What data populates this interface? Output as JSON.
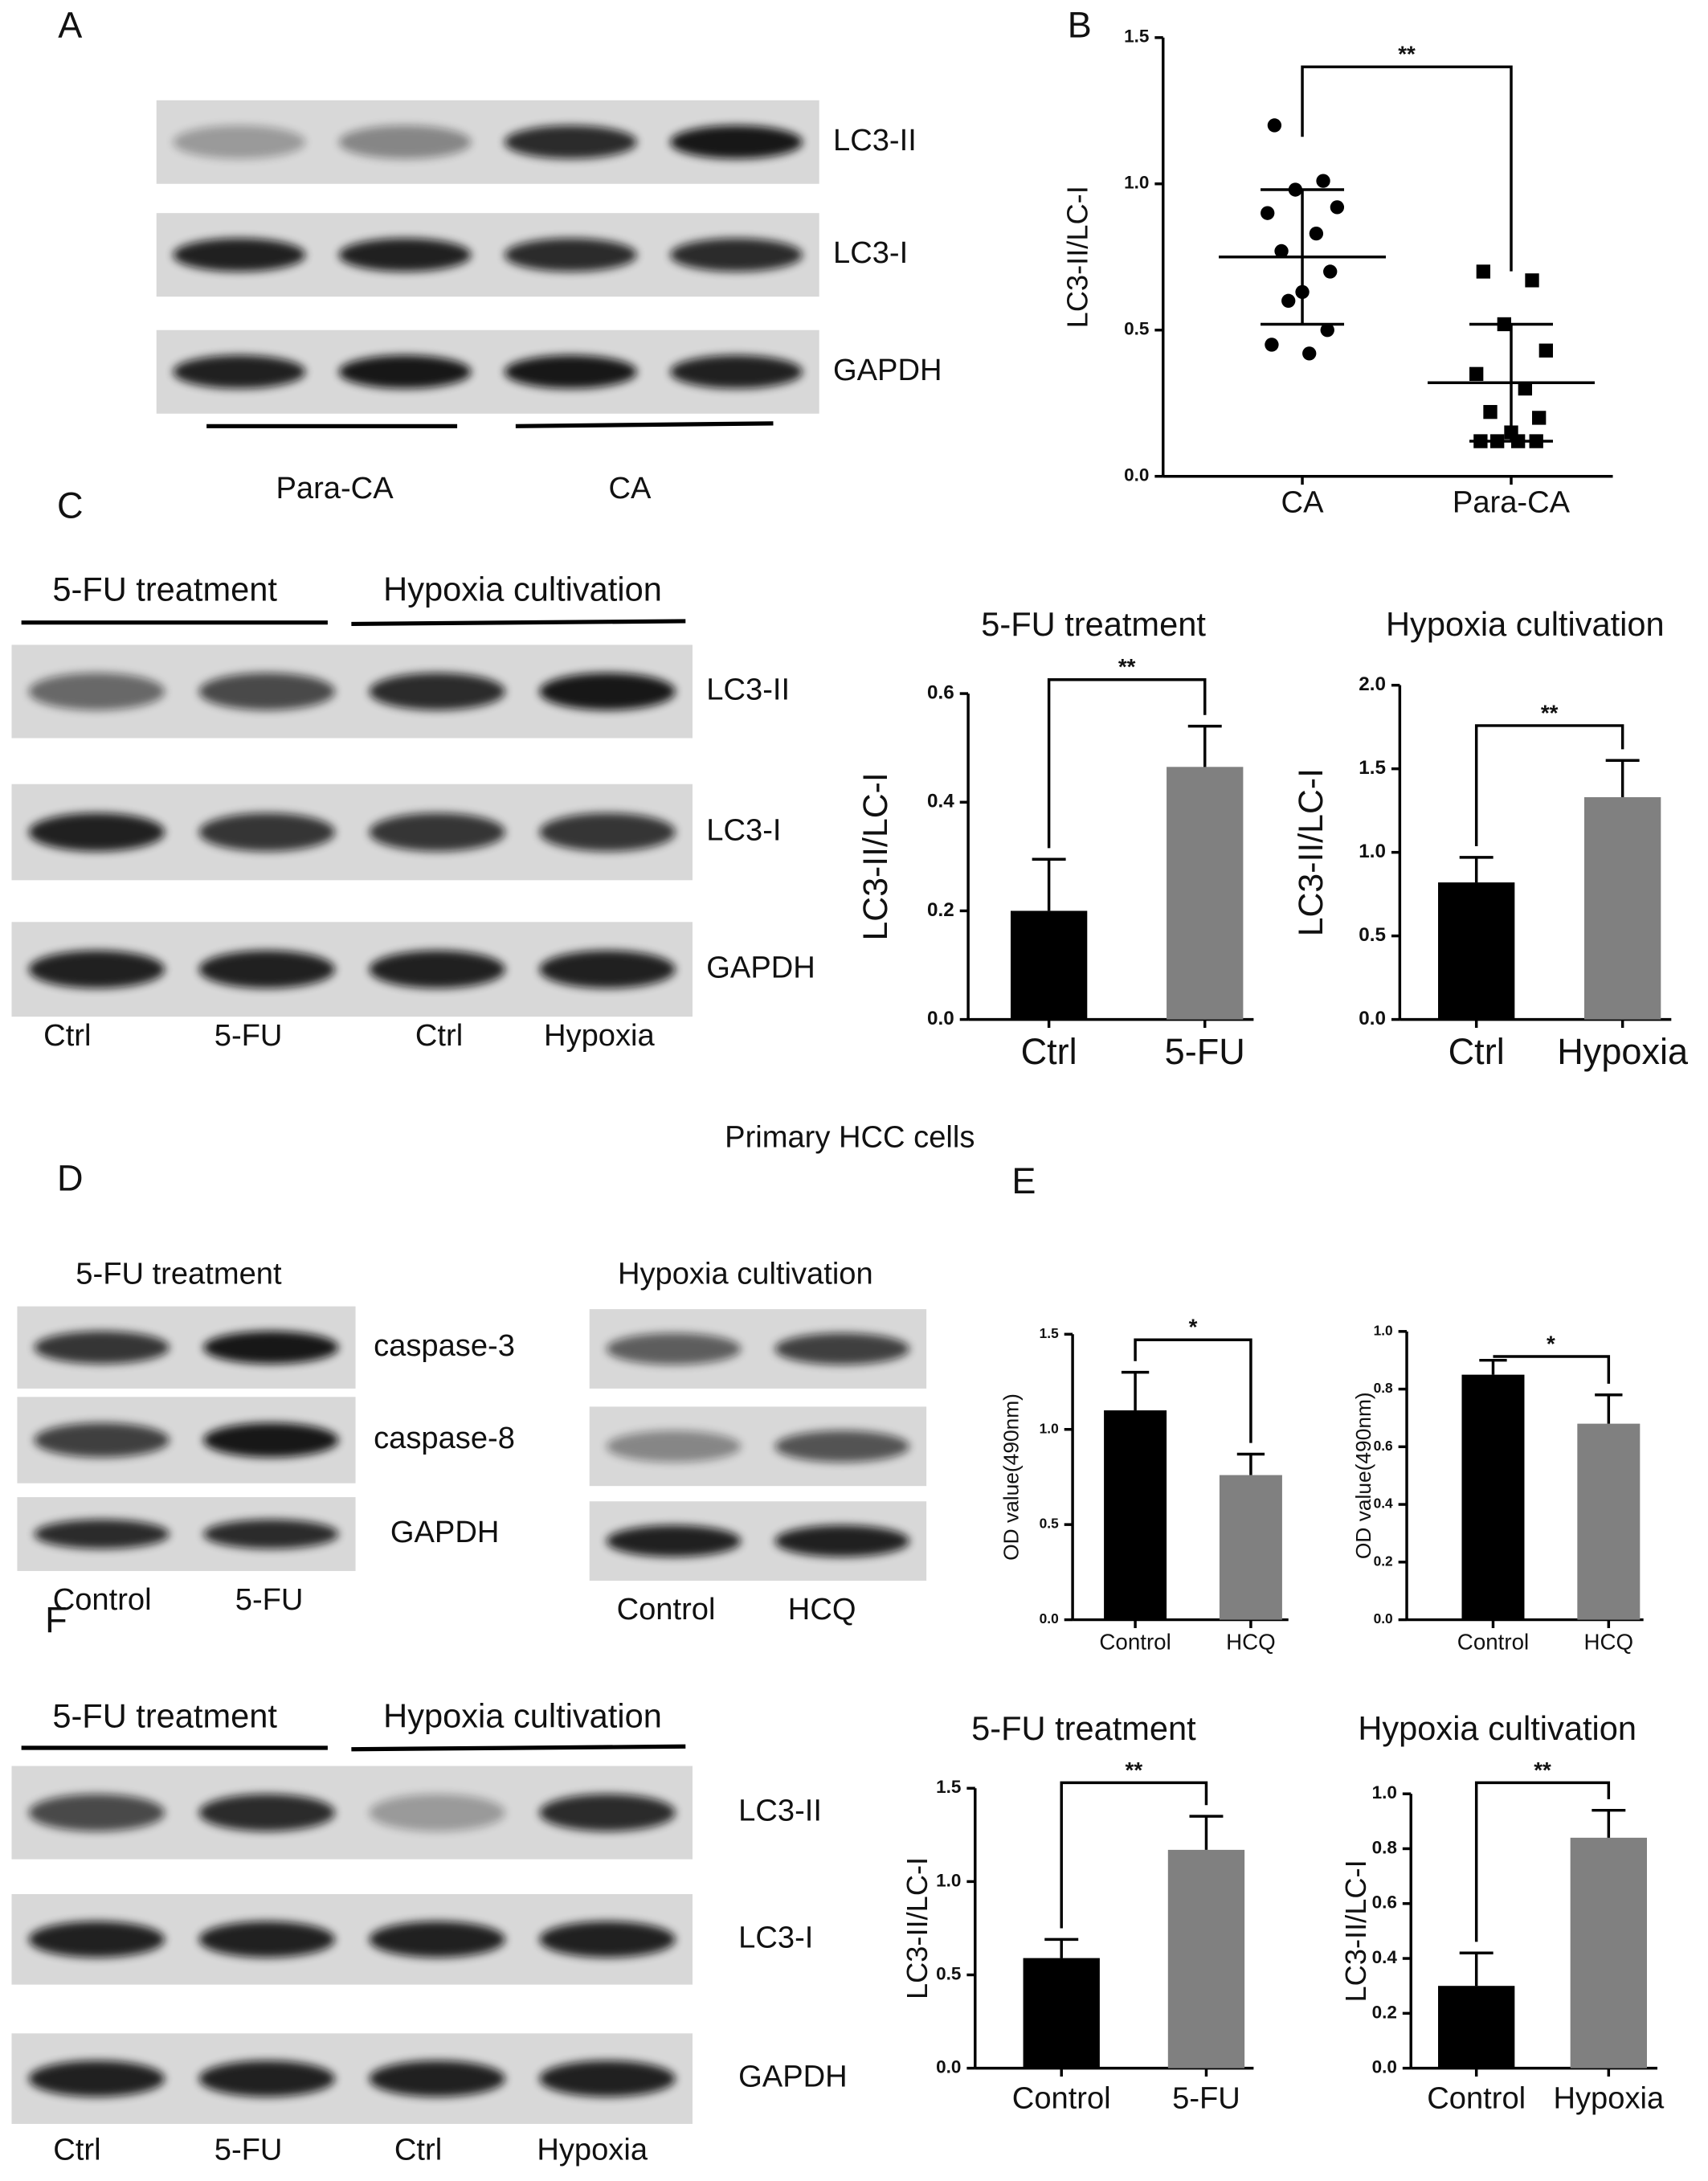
{
  "panels": [
    "A",
    "B",
    "C",
    "D",
    "E",
    "F"
  ],
  "A": {
    "blots": [
      "LC3-II",
      "LC3-I",
      "GAPDH"
    ],
    "groups": [
      "Para-CA",
      "CA"
    ]
  },
  "C": {
    "headers": [
      "5-FU treatment",
      "Hypoxia cultivation"
    ],
    "blots": [
      "LC3-II",
      "LC3-I",
      "GAPDH"
    ],
    "lanes": [
      "Ctrl",
      "5-FU",
      "Ctrl",
      "Hypoxia"
    ]
  },
  "D": {
    "heading": "Primary HCC cells",
    "left": {
      "header": "5-FU treatment",
      "blots": [
        "caspase-3",
        "caspase-8",
        "GAPDH"
      ],
      "lanes": [
        "Control",
        "5-FU"
      ]
    },
    "right": {
      "header": "Hypoxia cultivation",
      "lanes": [
        "Control",
        "HCQ"
      ]
    }
  },
  "F": {
    "headers": [
      "5-FU treatment",
      "Hypoxia cultivation"
    ],
    "blots": [
      "LC3-II",
      "LC3-I",
      "GAPDH"
    ],
    "lanes": [
      "Ctrl",
      "5-FU",
      "Ctrl",
      "Hypoxia"
    ]
  },
  "chart_data": [
    {
      "type": "strip",
      "ylabel": "LC3-II/LC-I",
      "categories": [
        "CA",
        "Para-CA"
      ],
      "groups": [
        {
          "values": [
            1.2,
            1.01,
            0.98,
            0.92,
            0.9,
            0.83,
            0.77,
            0.7,
            0.63,
            0.6,
            0.5,
            0.45,
            0.42
          ],
          "mean": 0.75,
          "sd": 0.23
        },
        {
          "values": [
            0.7,
            0.67,
            0.52,
            0.43,
            0.35,
            0.3,
            0.22,
            0.2,
            0.15,
            0.12,
            0.12,
            0.12,
            0.12
          ],
          "mean": 0.32,
          "sd": 0.2
        }
      ],
      "markers": [
        "circle",
        "square"
      ],
      "color": "#000000",
      "ylim": [
        0,
        1.5
      ],
      "yticks": [
        {
          "value": 0,
          "label": "0.0"
        },
        0.5,
        {
          "value": 1,
          "label": "1.0"
        },
        1.5
      ],
      "significance": "**"
    },
    {
      "type": "bar",
      "title": "5-FU treatment",
      "ylabel": "LC3-II/LC-I",
      "categories": [
        "Ctrl",
        "5-FU"
      ],
      "values": [
        0.2,
        0.465
      ],
      "errors": [
        0.095,
        0.075
      ],
      "colors": [
        "#000000",
        "#808080"
      ],
      "ylim": [
        0,
        0.6
      ],
      "yticks": [
        {
          "value": 0,
          "label": "0.0"
        },
        0.2,
        0.4,
        0.6
      ],
      "significance": "**"
    },
    {
      "type": "bar",
      "title": "Hypoxia cultivation",
      "ylabel": "LC3-II/LC-I",
      "categories": [
        "Ctrl",
        "Hypoxia"
      ],
      "values": [
        0.82,
        1.33
      ],
      "errors": [
        0.15,
        0.22
      ],
      "colors": [
        "#000000",
        "#808080"
      ],
      "ylim": [
        0,
        2
      ],
      "yticks": [
        {
          "value": 0,
          "label": "0.0"
        },
        0.5,
        {
          "value": 1,
          "label": "1.0"
        },
        1.5,
        {
          "value": 2,
          "label": "2.0"
        }
      ],
      "significance": "**"
    },
    {
      "type": "bar",
      "ylabel": "OD value(490nm)",
      "categories": [
        "Control",
        "HCQ"
      ],
      "values": [
        1.1,
        0.76
      ],
      "errors": [
        0.2,
        0.11
      ],
      "colors": [
        "#000000",
        "#808080"
      ],
      "ylim": [
        0,
        1.5
      ],
      "yticks": [
        {
          "value": 0,
          "label": "0.0"
        },
        0.5,
        {
          "value": 1,
          "label": "1.0"
        },
        1.5
      ],
      "significance": "*"
    },
    {
      "type": "bar",
      "ylabel": "OD value(490nm)",
      "categories": [
        "Control",
        "HCQ"
      ],
      "values": [
        0.85,
        0.68
      ],
      "errors": [
        0.05,
        0.1
      ],
      "colors": [
        "#000000",
        "#808080"
      ],
      "ylim": [
        0,
        1
      ],
      "yticks": [
        {
          "value": 0,
          "label": "0.0"
        },
        0.2,
        0.4,
        0.6,
        0.8,
        {
          "value": 1,
          "label": "1.0"
        }
      ],
      "significance": "*"
    },
    {
      "type": "bar",
      "title": "5-FU treatment",
      "ylabel": "LC3-II/LC-I",
      "categories": [
        "Control",
        "5-FU"
      ],
      "values": [
        0.59,
        1.17
      ],
      "errors": [
        0.1,
        0.18
      ],
      "colors": [
        "#000000",
        "#808080"
      ],
      "ylim": [
        0,
        1.5
      ],
      "yticks": [
        {
          "value": 0,
          "label": "0.0"
        },
        0.5,
        {
          "value": 1,
          "label": "1.0"
        },
        1.5
      ],
      "significance": "**"
    },
    {
      "type": "bar",
      "title": "Hypoxia cultivation",
      "ylabel": "LC3-II/LC-I",
      "categories": [
        "Control",
        "Hypoxia"
      ],
      "values": [
        0.3,
        0.84
      ],
      "errors": [
        0.12,
        0.1
      ],
      "colors": [
        "#000000",
        "#808080"
      ],
      "ylim": [
        0,
        1
      ],
      "yticks": [
        {
          "value": 0,
          "label": "0.0"
        },
        0.2,
        0.4,
        0.6,
        0.8,
        {
          "value": 1,
          "label": "1.0"
        }
      ],
      "significance": "**"
    }
  ]
}
